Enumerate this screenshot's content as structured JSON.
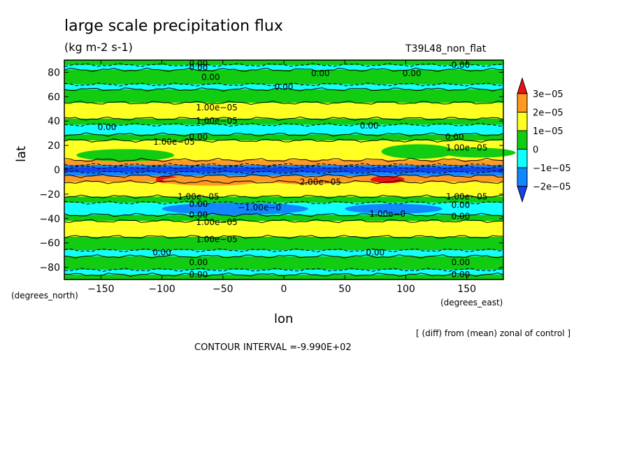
{
  "chart_data": {
    "type": "heatmap",
    "title": "large scale precipitation flux",
    "units": "(kg m-2 s-1)",
    "run_name": "T39L48_non_flat",
    "xlabel": "lon",
    "ylabel": "lat",
    "x_unit_label": "(degrees_east)",
    "y_unit_label": "(degrees_north)",
    "xlim": [
      -180,
      180
    ],
    "ylim": [
      -90,
      90
    ],
    "x_ticks": [
      -150,
      -100,
      -50,
      0,
      50,
      100,
      150
    ],
    "y_ticks": [
      -80,
      -60,
      -40,
      -20,
      0,
      20,
      40,
      60,
      80
    ],
    "x_tick_labels": [
      "−150",
      "−100",
      "−50",
      "0",
      "50",
      "100",
      "150"
    ],
    "y_tick_labels": [
      "−80",
      "−60",
      "−40",
      "−20",
      "0",
      "20",
      "40",
      "60",
      "80"
    ],
    "note": "[ (diff) from (mean) zonal of control ]",
    "contour_interval": "CONTOUR INTERVAL =-9.990E+02",
    "legend": {
      "placement": "right",
      "labels": [
        "3e−05",
        "2e−05",
        "1e−05",
        "0",
        "−1e−05",
        "−2e−05"
      ],
      "levels": [
        3e-05,
        2e-05,
        1e-05,
        0,
        -1e-05,
        -2e-05
      ],
      "colors": [
        "#ee1111",
        "#ff9922",
        "#ffff22",
        "#11cc11",
        "#11ffff",
        "#1188ff",
        "#1144ee"
      ]
    },
    "zonal_bands": [
      {
        "lat_from": 90,
        "lat_to": 86,
        "value_class": "0"
      },
      {
        "lat_from": 86,
        "lat_to": 82,
        "value_class": "-1e-05"
      },
      {
        "lat_from": 82,
        "lat_to": 70,
        "value_class": "0"
      },
      {
        "lat_from": 70,
        "lat_to": 66,
        "value_class": "-1e-05"
      },
      {
        "lat_from": 66,
        "lat_to": 55,
        "value_class": "0"
      },
      {
        "lat_from": 55,
        "lat_to": 42,
        "value_class": "1e-05"
      },
      {
        "lat_from": 42,
        "lat_to": 37,
        "value_class": "0"
      },
      {
        "lat_from": 37,
        "lat_to": 29,
        "value_class": "-1e-05"
      },
      {
        "lat_from": 29,
        "lat_to": 24,
        "value_class": "0"
      },
      {
        "lat_from": 24,
        "lat_to": 8,
        "value_class": "1e-05"
      },
      {
        "lat_from": 8,
        "lat_to": 4,
        "value_class": "2e-05"
      },
      {
        "lat_from": 4,
        "lat_to": 2,
        "value_class": "-2e-05"
      },
      {
        "lat_from": 2,
        "lat_to": -2,
        "value_class": "below"
      },
      {
        "lat_from": -2,
        "lat_to": -5,
        "value_class": "-2e-05"
      },
      {
        "lat_from": -5,
        "lat_to": -10,
        "value_class": "2e-05"
      },
      {
        "lat_from": -10,
        "lat_to": -22,
        "value_class": "1e-05"
      },
      {
        "lat_from": -22,
        "lat_to": -27,
        "value_class": "0"
      },
      {
        "lat_from": -27,
        "lat_to": -37,
        "value_class": "-1e-05"
      },
      {
        "lat_from": -37,
        "lat_to": -42,
        "value_class": "0"
      },
      {
        "lat_from": -42,
        "lat_to": -55,
        "value_class": "1e-05"
      },
      {
        "lat_from": -55,
        "lat_to": -66,
        "value_class": "0"
      },
      {
        "lat_from": -66,
        "lat_to": -71,
        "value_class": "-1e-05"
      },
      {
        "lat_from": -71,
        "lat_to": -82,
        "value_class": "0"
      },
      {
        "lat_from": -82,
        "lat_to": -86,
        "value_class": "-1e-05"
      },
      {
        "lat_from": -86,
        "lat_to": -90,
        "value_class": "0"
      }
    ],
    "patches": [
      {
        "lon": -95,
        "lat": -8,
        "dlon": 10,
        "dlat": 3,
        "value_class": "3e-05"
      },
      {
        "lon": 85,
        "lat": -8,
        "dlon": 14,
        "dlat": 3,
        "value_class": "3e-05"
      },
      {
        "lon": -60,
        "lat": -9,
        "dlon": 40,
        "dlat": 4,
        "value_class": "2e-05"
      },
      {
        "lon": 20,
        "lat": -9,
        "dlon": 30,
        "dlat": 3,
        "value_class": "2e-05"
      },
      {
        "lon": -130,
        "lat": 12,
        "dlon": 40,
        "dlat": 5,
        "value_class": "0"
      },
      {
        "lon": 110,
        "lat": 15,
        "dlon": 30,
        "dlat": 6,
        "value_class": "0"
      },
      {
        "lon": 160,
        "lat": 14,
        "dlon": 30,
        "dlat": 4,
        "value_class": "0"
      },
      {
        "lon": -40,
        "lat": -32,
        "dlon": 60,
        "dlat": 5,
        "value_class": "-2e-05"
      },
      {
        "lon": 90,
        "lat": -32,
        "dlon": 40,
        "dlat": 4,
        "value_class": "-2e-05"
      }
    ],
    "contour_labels": [
      {
        "text": "0.00",
        "lon": -70,
        "lat": 87
      },
      {
        "text": "0.00",
        "lon": -70,
        "lat": 84
      },
      {
        "text": "0.00",
        "lon": -60,
        "lat": 76
      },
      {
        "text": "0.00",
        "lon": 30,
        "lat": 79
      },
      {
        "text": "0.00",
        "lon": 105,
        "lat": 79
      },
      {
        "text": "0.00",
        "lon": 145,
        "lat": 86
      },
      {
        "text": "0.00",
        "lon": 0,
        "lat": 68
      },
      {
        "text": "1.00e−05",
        "lon": -55,
        "lat": 51
      },
      {
        "text": "1.00e−05",
        "lon": -55,
        "lat": 40
      },
      {
        "text": "0.00",
        "lon": -145,
        "lat": 35
      },
      {
        "text": "0.00",
        "lon": 70,
        "lat": 36
      },
      {
        "text": "0.00",
        "lon": -70,
        "lat": 27
      },
      {
        "text": "1.00e−05",
        "lon": -90,
        "lat": 23
      },
      {
        "text": "0.00",
        "lon": 140,
        "lat": 27
      },
      {
        "text": "1.00e−05",
        "lon": 150,
        "lat": 18
      },
      {
        "text": "2.00e−05",
        "lon": 30,
        "lat": -10
      },
      {
        "text": "1.00e−05",
        "lon": -70,
        "lat": -22
      },
      {
        "text": "1.00e−05",
        "lon": 150,
        "lat": -22
      },
      {
        "text": "0.00",
        "lon": -70,
        "lat": -28
      },
      {
        "text": "−1.00e−0",
        "lon": -20,
        "lat": -31
      },
      {
        "text": "1.00e−0",
        "lon": 85,
        "lat": -36
      },
      {
        "text": "0.00",
        "lon": 145,
        "lat": -29
      },
      {
        "text": "0.00",
        "lon": 145,
        "lat": -38
      },
      {
        "text": "0.00",
        "lon": -70,
        "lat": -37
      },
      {
        "text": "1.00e−05",
        "lon": -55,
        "lat": -43
      },
      {
        "text": "1.00e−05",
        "lon": -55,
        "lat": -57
      },
      {
        "text": "0.00",
        "lon": -100,
        "lat": -68
      },
      {
        "text": "0.00",
        "lon": 75,
        "lat": -68
      },
      {
        "text": "0.00",
        "lon": -70,
        "lat": -76
      },
      {
        "text": "0.00",
        "lon": 145,
        "lat": -76
      },
      {
        "text": "0.00",
        "lon": -70,
        "lat": -86
      },
      {
        "text": "0.00",
        "lon": 145,
        "lat": -86
      }
    ]
  }
}
